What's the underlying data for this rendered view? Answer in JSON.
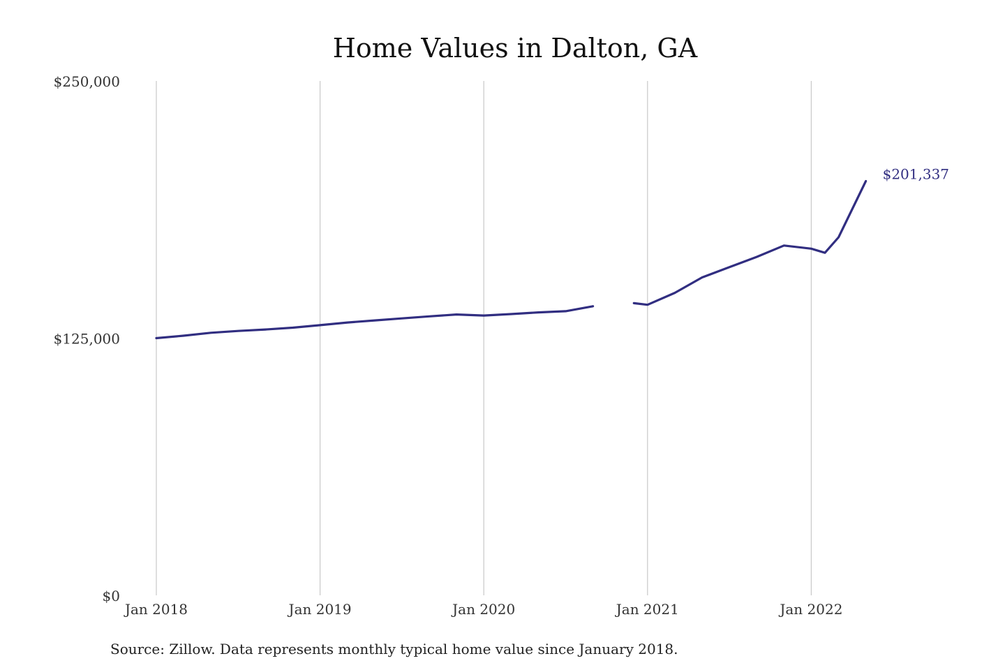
{
  "chart_data": {
    "type": "line",
    "title": "Home Values in Dalton, GA",
    "source": "Source: Zillow. Data represents monthly typical home value since January 2018.",
    "xlabel": "",
    "ylabel": "",
    "x_ticks": [
      {
        "date": "2018-01",
        "label": "Jan 2018"
      },
      {
        "date": "2019-01",
        "label": "Jan 2019"
      },
      {
        "date": "2020-01",
        "label": "Jan 2020"
      },
      {
        "date": "2021-01",
        "label": "Jan 2021"
      },
      {
        "date": "2022-01",
        "label": "Jan 2022"
      }
    ],
    "xlim": [
      "2018-01",
      "2022-05"
    ],
    "y_ticks": [
      {
        "value": 0,
        "label": "$0"
      },
      {
        "value": 125000,
        "label": "$125,000"
      },
      {
        "value": 250000,
        "label": "$250,000"
      }
    ],
    "ylim": [
      0,
      250000
    ],
    "grid": {
      "vertical": true,
      "horizontal": false
    },
    "legend": "none",
    "line_color": "#312e81",
    "series": [
      {
        "segments": [
          [
            {
              "x": "2018-01",
              "y": 125000
            },
            {
              "x": "2018-03",
              "y": 126200
            },
            {
              "x": "2018-05",
              "y": 127600
            },
            {
              "x": "2018-07",
              "y": 128500
            },
            {
              "x": "2018-09",
              "y": 129200
            },
            {
              "x": "2018-11",
              "y": 130100
            },
            {
              "x": "2019-01",
              "y": 131300
            },
            {
              "x": "2019-03",
              "y": 132600
            },
            {
              "x": "2019-05",
              "y": 133600
            },
            {
              "x": "2019-07",
              "y": 134600
            },
            {
              "x": "2019-09",
              "y": 135600
            },
            {
              "x": "2019-11",
              "y": 136500
            },
            {
              "x": "2020-01",
              "y": 136000
            },
            {
              "x": "2020-03",
              "y": 136700
            },
            {
              "x": "2020-05",
              "y": 137500
            },
            {
              "x": "2020-07",
              "y": 138100
            },
            {
              "x": "2020-09",
              "y": 140500
            }
          ],
          [
            {
              "x": "2020-12",
              "y": 142000
            },
            {
              "x": "2021-01",
              "y": 141200
            },
            {
              "x": "2021-03",
              "y": 147000
            },
            {
              "x": "2021-05",
              "y": 154500
            },
            {
              "x": "2021-07",
              "y": 159500
            },
            {
              "x": "2021-09",
              "y": 164500
            },
            {
              "x": "2021-11",
              "y": 170000
            },
            {
              "x": "2022-01",
              "y": 168500
            },
            {
              "x": "2022-02",
              "y": 166500
            },
            {
              "x": "2022-03",
              "y": 174000
            },
            {
              "x": "2022-05",
              "y": 201337
            }
          ]
        ]
      }
    ],
    "annotations": [
      {
        "x": "2022-05",
        "y": 201337,
        "label": "$201,337"
      }
    ]
  }
}
